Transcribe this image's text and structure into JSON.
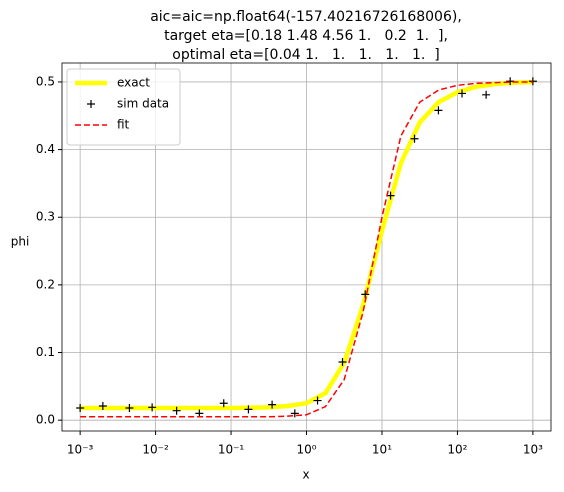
{
  "chart_data": {
    "type": "line",
    "title": [
      "aic=aic=np.float64(-157.40216726168006),",
      "target eta=[0.18 1.48 4.56 1.   0.2  1.  ],",
      "optimal eta=[0.04 1.   1.   1.   1.   1.  ]"
    ],
    "xlabel": "x",
    "ylabel": "phi",
    "xscale": "log",
    "xlim": [
      0.000575,
      1738
    ],
    "ylim": [
      -0.016,
      0.528
    ],
    "xticks": [
      {
        "value": 0.001,
        "label": "10⁻³"
      },
      {
        "value": 0.01,
        "label": "10⁻²"
      },
      {
        "value": 0.1,
        "label": "10⁻¹"
      },
      {
        "value": 1,
        "label": "10⁰"
      },
      {
        "value": 10,
        "label": "10¹"
      },
      {
        "value": 100,
        "label": "10²"
      },
      {
        "value": 1000,
        "label": "10³"
      }
    ],
    "yticks": [
      {
        "value": 0,
        "label": "0.0"
      },
      0.1,
      0.2,
      0.3,
      0.4,
      0.5
    ],
    "grid": true,
    "legend": "upper left",
    "series": [
      {
        "name": "exact",
        "color": "#ffff00",
        "style": "solid",
        "width": 4.5,
        "x": [
          0.001,
          0.00316,
          0.01,
          0.0316,
          0.1,
          0.316,
          0.562,
          1,
          1.78,
          3.16,
          5.62,
          10,
          17.8,
          31.6,
          56.2,
          100,
          178,
          316,
          562,
          1000
        ],
        "values": [
          0.018,
          0.018,
          0.018,
          0.018,
          0.018,
          0.019,
          0.021,
          0.025,
          0.04,
          0.085,
          0.17,
          0.28,
          0.38,
          0.44,
          0.47,
          0.485,
          0.493,
          0.497,
          0.499,
          0.5
        ]
      },
      {
        "name": "sim data",
        "color": "#000000",
        "style": "plus",
        "x": [
          0.001,
          0.002,
          0.0045,
          0.009,
          0.019,
          0.038,
          0.08,
          0.17,
          0.35,
          0.7,
          1.4,
          3,
          6,
          13,
          27,
          56,
          115,
          240,
          500,
          1000
        ],
        "values": [
          0.018,
          0.021,
          0.018,
          0.019,
          0.014,
          0.01,
          0.025,
          0.016,
          0.023,
          0.01,
          0.029,
          0.086,
          0.186,
          0.332,
          0.416,
          0.458,
          0.483,
          0.481,
          0.501,
          0.501
        ]
      },
      {
        "name": "fit",
        "color": "#ff0000",
        "style": "dashed",
        "width": 1.5,
        "x": [
          0.001,
          0.00316,
          0.01,
          0.0316,
          0.1,
          0.316,
          0.562,
          1,
          1.78,
          3.16,
          5.62,
          10,
          17.8,
          31.6,
          56.2,
          100,
          178,
          316,
          562,
          1000
        ],
        "values": [
          0.005,
          0.005,
          0.005,
          0.005,
          0.005,
          0.005,
          0.006,
          0.008,
          0.02,
          0.06,
          0.16,
          0.3,
          0.42,
          0.47,
          0.488,
          0.495,
          0.498,
          0.499,
          0.5,
          0.5
        ]
      }
    ]
  }
}
